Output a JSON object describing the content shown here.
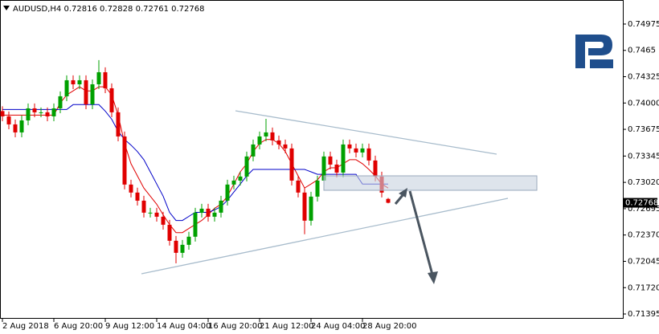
{
  "chart_data": {
    "type": "candlestick",
    "title": "AUDUSD,H4",
    "x": [
      0,
      1,
      2,
      3,
      4,
      5,
      6,
      7,
      8,
      9,
      10,
      11,
      12,
      13,
      14,
      15,
      16,
      17,
      18,
      19,
      20,
      21,
      22,
      23,
      24,
      25,
      26,
      27,
      28,
      29,
      30,
      31,
      32,
      33,
      34,
      35,
      36,
      37,
      38,
      39,
      40,
      41,
      42,
      43,
      44,
      45,
      46,
      47,
      48,
      49,
      50,
      51,
      52,
      53,
      54,
      55,
      56,
      57,
      58,
      59,
      60
    ],
    "open": [
      0.739,
      0.73835,
      0.73736,
      0.73637,
      0.73785,
      0.73934,
      0.73885,
      0.73885,
      0.73835,
      0.73934,
      0.74083,
      0.74281,
      0.74231,
      0.74281,
      0.73984,
      0.74231,
      0.7438,
      0.74182,
      0.73885,
      0.73587,
      0.72993,
      0.72894,
      0.72794,
      0.72646,
      0.72646,
      0.72596,
      0.72497,
      0.72299,
      0.7215,
      0.72249,
      0.72349,
      0.72646,
      0.72695,
      0.72596,
      0.72646,
      0.72794,
      0.72993,
      0.73042,
      0.73092,
      0.7334,
      0.73488,
      0.73587,
      0.73637,
      0.73538,
      0.73488,
      0.73439,
      0.73042,
      0.72894,
      0.72547,
      0.72844,
      0.73042,
      0.7334,
      0.7324,
      0.73141,
      0.73488,
      0.73439,
      0.73389,
      0.73439,
      0.7329,
      0.73092,
      0.72816
    ],
    "high": [
      0.7396,
      0.73895,
      0.73796,
      0.73845,
      0.73994,
      0.73994,
      0.73945,
      0.73945,
      0.73994,
      0.74143,
      0.74341,
      0.74341,
      0.74341,
      0.74341,
      0.74291,
      0.7453,
      0.7444,
      0.74242,
      0.73945,
      0.73647,
      0.73053,
      0.72954,
      0.72854,
      0.72706,
      0.72706,
      0.72656,
      0.72557,
      0.72359,
      0.72309,
      0.72409,
      0.72706,
      0.72755,
      0.72755,
      0.72706,
      0.72854,
      0.73053,
      0.73102,
      0.73152,
      0.734,
      0.73548,
      0.73647,
      0.73805,
      0.73697,
      0.73598,
      0.73548,
      0.73499,
      0.73102,
      0.72954,
      0.72904,
      0.73102,
      0.734,
      0.734,
      0.733,
      0.73548,
      0.73548,
      0.73499,
      0.73499,
      0.73499,
      0.7335,
      0.73152,
      0.72828
    ],
    "low": [
      0.73775,
      0.73676,
      0.73577,
      0.73577,
      0.73725,
      0.73825,
      0.73825,
      0.73775,
      0.73775,
      0.73874,
      0.74023,
      0.74171,
      0.74171,
      0.73924,
      0.73924,
      0.74171,
      0.74122,
      0.73825,
      0.73527,
      0.72933,
      0.72834,
      0.72734,
      0.72586,
      0.72586,
      0.72536,
      0.72437,
      0.72239,
      0.7202,
      0.7209,
      0.72189,
      0.72289,
      0.72586,
      0.72536,
      0.72536,
      0.72586,
      0.72734,
      0.72933,
      0.72982,
      0.73032,
      0.7328,
      0.73428,
      0.73527,
      0.73478,
      0.73428,
      0.73379,
      0.72982,
      0.72834,
      0.7238,
      0.72487,
      0.72784,
      0.72982,
      0.7318,
      0.73081,
      0.73081,
      0.73379,
      0.73329,
      0.73329,
      0.7323,
      0.73032,
      0.72834,
      0.72761
    ],
    "close": [
      0.73835,
      0.73736,
      0.73637,
      0.73785,
      0.73934,
      0.73885,
      0.73885,
      0.73835,
      0.73934,
      0.74083,
      0.74281,
      0.74231,
      0.74281,
      0.73984,
      0.74231,
      0.7438,
      0.74182,
      0.73885,
      0.73587,
      0.72993,
      0.72894,
      0.72794,
      0.72646,
      0.72646,
      0.72596,
      0.72497,
      0.72299,
      0.7215,
      0.72249,
      0.72349,
      0.72646,
      0.72695,
      0.72596,
      0.72646,
      0.72794,
      0.72993,
      0.73042,
      0.73092,
      0.7334,
      0.73488,
      0.73587,
      0.73637,
      0.73538,
      0.73488,
      0.73439,
      0.73042,
      0.72894,
      0.72547,
      0.72844,
      0.73042,
      0.7334,
      0.7324,
      0.73141,
      0.73488,
      0.73439,
      0.73389,
      0.73439,
      0.7329,
      0.73092,
      0.72894,
      0.72768
    ],
    "up_color": "#00a000",
    "down_color": "#e00000",
    "series": [
      {
        "color": "#e00000",
        "values": [
          0.7385,
          0.7385,
          0.7385,
          0.7385,
          0.7385,
          0.7385,
          0.7385,
          0.7385,
          0.7385,
          0.74,
          0.741,
          0.7415,
          0.742,
          0.7415,
          0.7415,
          0.742,
          0.742,
          0.741,
          0.7385,
          0.735,
          0.7325,
          0.731,
          0.7295,
          0.7285,
          0.7275,
          0.7262,
          0.725,
          0.724,
          0.724,
          0.7245,
          0.725,
          0.7255,
          0.7262,
          0.727,
          0.7275,
          0.7285,
          0.73,
          0.7315,
          0.7325,
          0.734,
          0.735,
          0.7355,
          0.7355,
          0.735,
          0.734,
          0.7325,
          0.731,
          0.7295,
          0.73,
          0.7305,
          0.7315,
          0.732,
          0.732,
          0.7325,
          0.733,
          0.733,
          0.7325,
          0.7318,
          0.731,
          0.73,
          0.7295
        ]
      },
      {
        "color": "#0000c8",
        "values": [
          0.7392,
          0.7392,
          0.7392,
          0.7392,
          0.7392,
          0.7392,
          0.7392,
          0.7392,
          0.7392,
          0.7392,
          0.7392,
          0.7398,
          0.7398,
          0.7398,
          0.7398,
          0.7398,
          0.739,
          0.738,
          0.7365,
          0.7355,
          0.7348,
          0.734,
          0.733,
          0.7315,
          0.73,
          0.7285,
          0.7265,
          0.7255,
          0.7255,
          0.726,
          0.7265,
          0.7265,
          0.7265,
          0.7268,
          0.7272,
          0.728,
          0.729,
          0.73,
          0.731,
          0.7318,
          0.7318,
          0.7318,
          0.7318,
          0.7318,
          0.7318,
          0.7318,
          0.7318,
          0.7318,
          0.7315,
          0.7312,
          0.7312,
          0.7312,
          0.7312,
          0.7312,
          0.7312,
          0.7312,
          0.73,
          0.73,
          0.73,
          0.73,
          0.73
        ]
      }
    ],
    "xlim": [
      -0.375,
      96.5
    ],
    "xticks": [
      {
        "value": 0,
        "label": "2 Aug 2018"
      },
      {
        "value": 8,
        "label": "6 Aug 20:00"
      },
      {
        "value": 16,
        "label": "9 Aug 12:00"
      },
      {
        "value": 24,
        "label": "14 Aug 04:00"
      },
      {
        "value": 32,
        "label": "16 Aug 20:00"
      },
      {
        "value": 40,
        "label": "21 Aug 12:00"
      },
      {
        "value": 48,
        "label": "24 Aug 04:00"
      },
      {
        "value": 56,
        "label": "28 Aug 20:00"
      }
    ],
    "ylim": [
      0.71336,
      0.75272
    ],
    "yticks": [
      0.74975,
      0.7465,
      0.74325,
      {
        "value": 0.74,
        "label": "0.74000"
      },
      0.73675,
      0.73345,
      {
        "value": 0.7302,
        "label": "0.73020"
      },
      0.72695,
      {
        "value": 0.7237,
        "label": "0.72370"
      },
      0.72045,
      {
        "value": 0.7172,
        "label": "0.71720"
      },
      0.71395
    ]
  }
}
